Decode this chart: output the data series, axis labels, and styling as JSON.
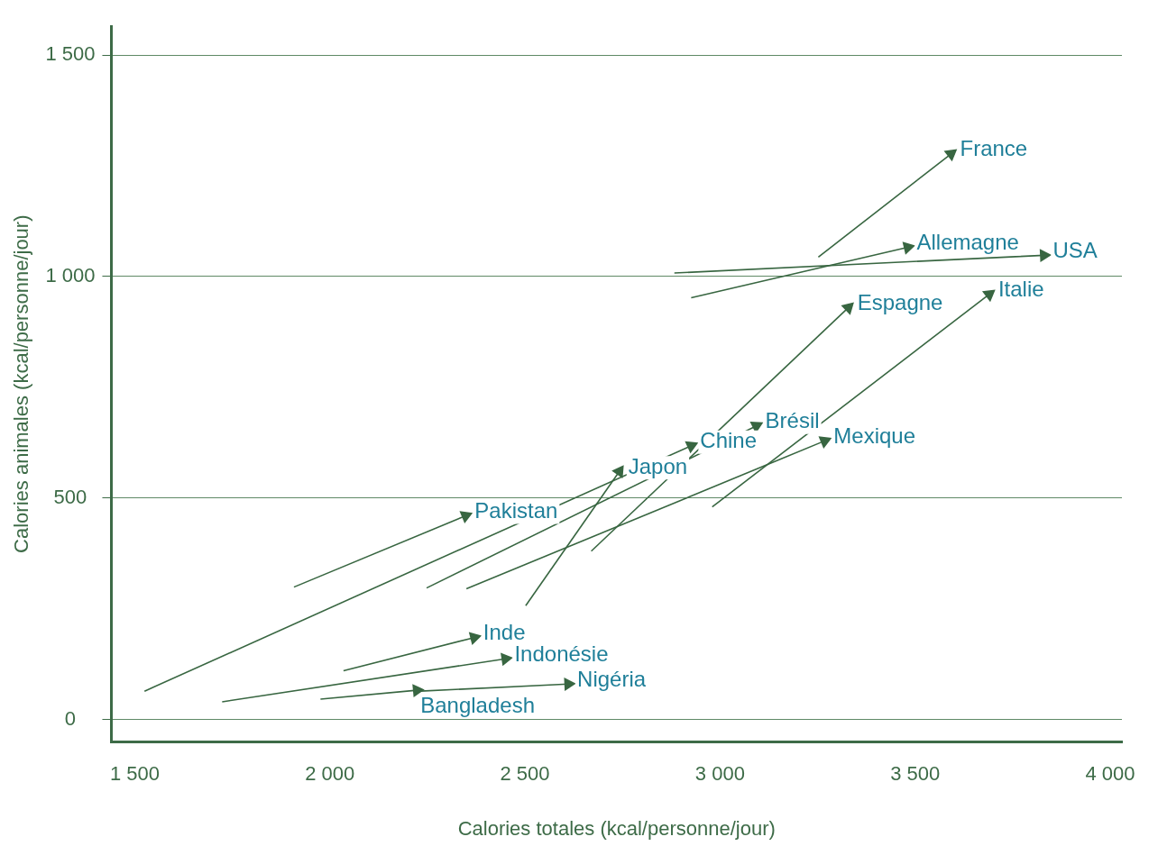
{
  "chart_data": {
    "type": "line",
    "xlabel": "Calories totales (kcal/personne/jour)",
    "ylabel": "Calories animales (kcal/personne/jour)",
    "xlim": [
      1440,
      4030
    ],
    "ylim": [
      -50,
      1565
    ],
    "xticks": [
      {
        "value": 1500,
        "label": "1 500"
      },
      {
        "value": 2000,
        "label": "2 000"
      },
      {
        "value": 2500,
        "label": "2 500"
      },
      {
        "value": 3000,
        "label": "3 000"
      },
      {
        "value": 3500,
        "label": "3 500"
      },
      {
        "value": 4000,
        "label": "4 000"
      }
    ],
    "yticks": [
      0,
      500,
      {
        "value": 1000,
        "label": "1 000"
      },
      {
        "value": 1500,
        "label": "1 500"
      }
    ],
    "grid": "y",
    "series": [
      {
        "name": "France",
        "color": "#386641",
        "x": [
          3252,
          3592
        ],
        "values": [
          1044,
          1277
        ]
      },
      {
        "name": "Allemagne",
        "color": "#386641",
        "x": [
          2926,
          3481
        ],
        "values": [
          952,
          1066
        ]
      },
      {
        "name": "USA",
        "color": "#386641",
        "x": [
          2883,
          3830
        ],
        "values": [
          1008,
          1048
        ]
      },
      {
        "name": "Espagne",
        "color": "#386641",
        "x": [
          2670,
          3329
        ],
        "values": [
          380,
          930
        ]
      },
      {
        "name": "Italie",
        "color": "#386641",
        "x": [
          2980,
          3690
        ],
        "values": [
          480,
          960
        ]
      },
      {
        "name": "Brésil",
        "color": "#386641",
        "x": [
          2248,
          3093
        ],
        "values": [
          297,
          663
        ]
      },
      {
        "name": "Chine",
        "color": "#386641",
        "x": [
          1525,
          2926
        ],
        "values": [
          64,
          618
        ]
      },
      {
        "name": "Mexique",
        "color": "#386641",
        "x": [
          2350,
          3268
        ],
        "values": [
          295,
          629
        ]
      },
      {
        "name": "Japon",
        "color": "#386641",
        "x": [
          2502,
          2742
        ],
        "values": [
          257,
          560
        ]
      },
      {
        "name": "Pakistan",
        "color": "#386641",
        "x": [
          1908,
          2348
        ],
        "values": [
          299,
          460
        ]
      },
      {
        "name": "Inde",
        "color": "#386641",
        "x": [
          2035,
          2370
        ],
        "values": [
          110,
          185
        ]
      },
      {
        "name": "Indonésie",
        "color": "#386641",
        "x": [
          1724,
          2450
        ],
        "values": [
          40,
          137
        ]
      },
      {
        "name": "Nigéria",
        "color": "#386641",
        "x": [
          2232,
          2611
        ],
        "values": [
          64,
          80
        ]
      },
      {
        "name": "Bangladesh",
        "color": "#386641",
        "x": [
          1976,
          2223
        ],
        "values": [
          46,
          66
        ]
      }
    ]
  }
}
